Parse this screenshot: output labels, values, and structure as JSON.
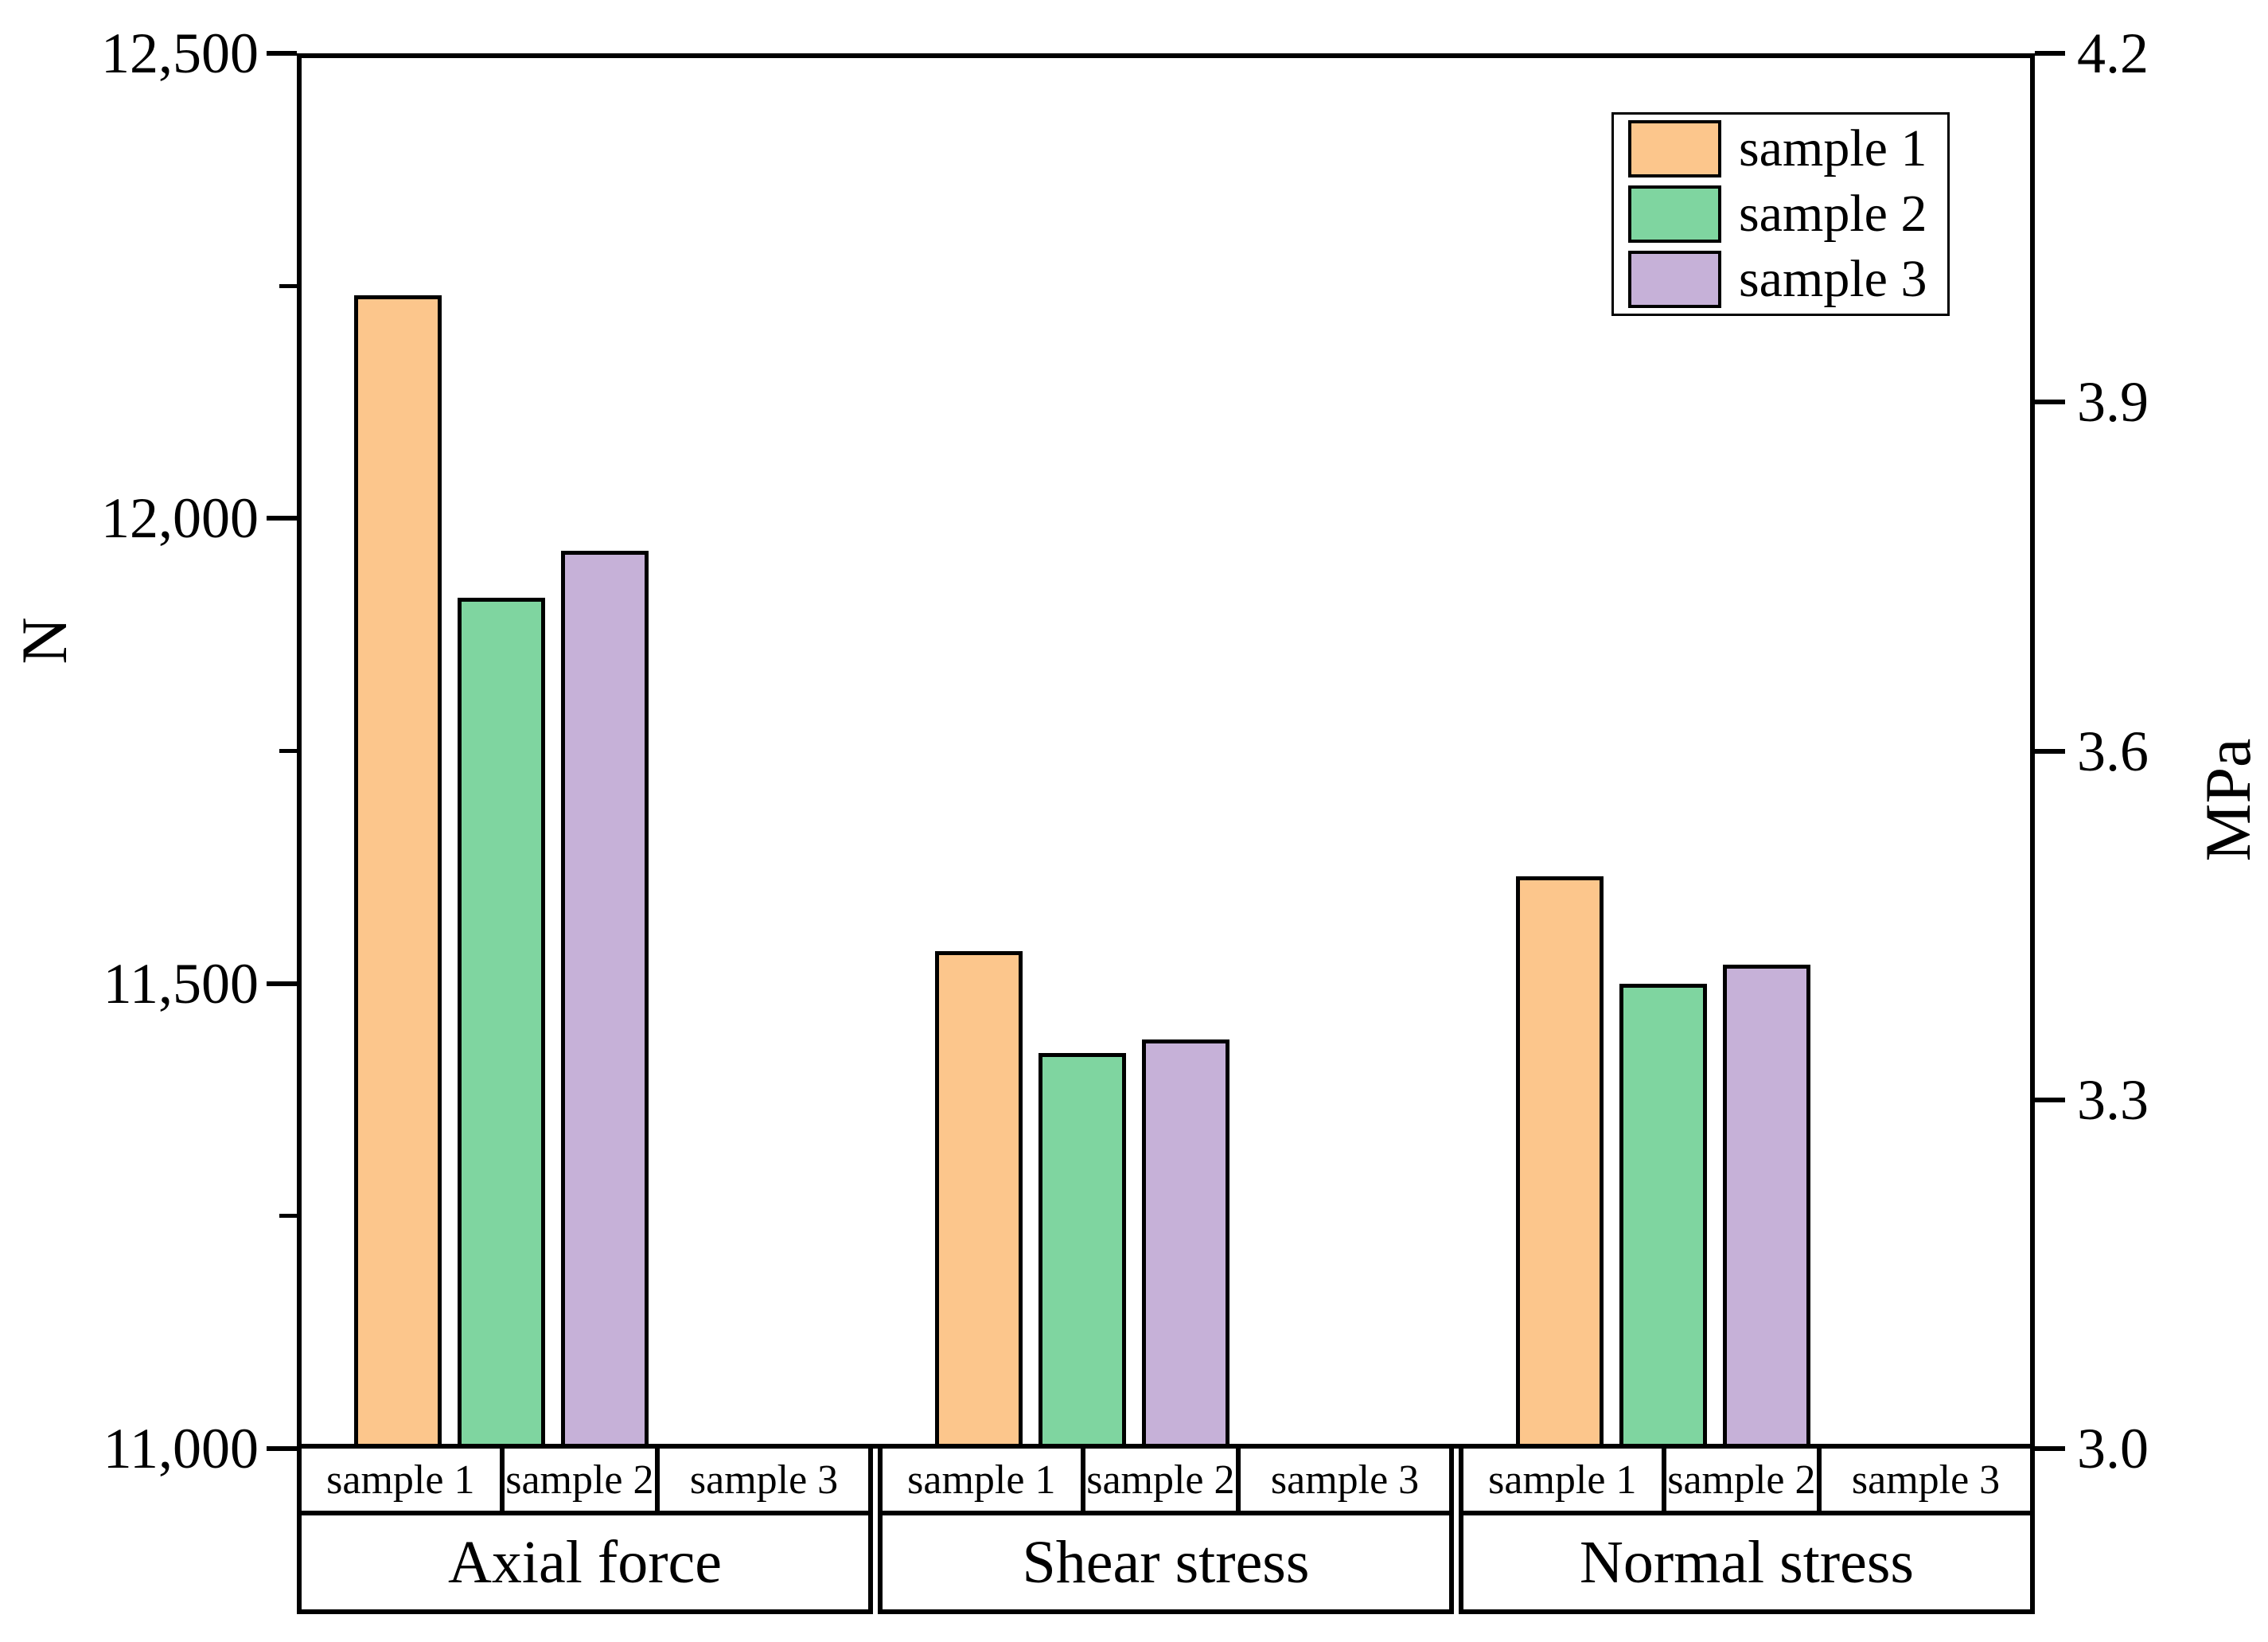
{
  "chart_data": {
    "type": "bar",
    "title": "",
    "grid": false,
    "legend": {
      "position": "top-right",
      "entries": [
        "sample 1",
        "sample 2",
        "sample 3"
      ]
    },
    "categories": [
      "Axial force",
      "Shear stress",
      "Normal stress"
    ],
    "series": [
      {
        "name": "sample 1",
        "color": "#FCC68C",
        "values_N": [
          12240,
          11535,
          11615
        ],
        "values_MPa": [
          3.99,
          3.43,
          3.49
        ]
      },
      {
        "name": "sample 2",
        "color": "#7FD5A0",
        "values_N": [
          11915,
          11425,
          11500
        ],
        "values_MPa": [
          3.73,
          3.34,
          3.4
        ]
      },
      {
        "name": "sample 3",
        "color": "#C6B1D8",
        "values_N": [
          11965,
          11440,
          11520
        ],
        "values_MPa": [
          3.77,
          3.35,
          3.42
        ]
      }
    ],
    "left_axis": {
      "title": "N",
      "min": 11000,
      "max": 12500,
      "major_values": [
        11000,
        11500,
        12000,
        12500
      ],
      "major_labels": [
        "11,000",
        "11,500",
        "12,000",
        "12,500"
      ],
      "minor_values": [
        11250,
        11750,
        12250
      ]
    },
    "right_axis": {
      "title": "MPa",
      "min": 3.0,
      "max": 4.2,
      "major_values": [
        3.0,
        3.3,
        3.6,
        3.9,
        4.2
      ],
      "major_labels": [
        "3.0",
        "3.3",
        "3.6",
        "3.9",
        "4.2"
      ],
      "minor_values": []
    },
    "x_table": {
      "sample_labels": [
        "sample 1",
        "sample 2",
        "sample 3"
      ],
      "group_labels": [
        "Axial force",
        "Shear stress",
        "Normal stress"
      ]
    },
    "bar_edge_color": "#000000"
  }
}
